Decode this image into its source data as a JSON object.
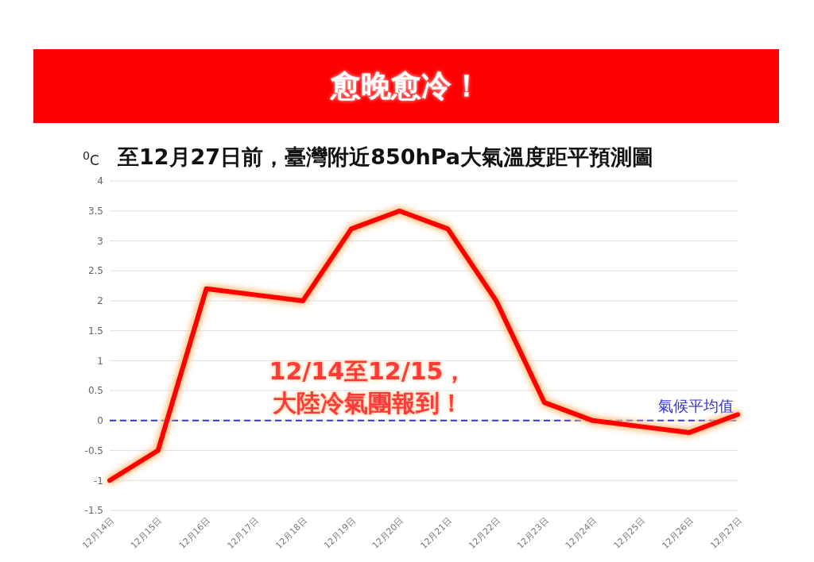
{
  "chart_data": {
    "type": "line",
    "title": "愈晚愈冷！",
    "subtitle": "至12月27日前，臺灣附近850hPa大氣溫度距平預測圖",
    "ylabel": "$^{0}$C",
    "categories": [
      "12月14日",
      "12月15日",
      "12月16日",
      "12月17日",
      "12月18日",
      "12月19日",
      "12月20日",
      "12月21日",
      "12月22日",
      "12月23日",
      "12月24日",
      "12月25日",
      "12月26日",
      "12月27日"
    ],
    "series": [
      {
        "color": "#ff0000",
        "values": [
          -1,
          -0.5,
          2.2,
          2.1,
          2.0,
          3.2,
          3.5,
          3.2,
          2.0,
          0.3,
          0,
          -0.1,
          -0.2,
          0.1
        ]
      }
    ],
    "ylim": [
      -1.5,
      4
    ],
    "yticks": [
      -1.5,
      -1,
      -0.5,
      0,
      0.5,
      1,
      1.5,
      2,
      2.5,
      3,
      3.5,
      4
    ],
    "grid": "y",
    "legend": false,
    "marker": "none",
    "line_style": "solid",
    "ref_lines": [
      {
        "axis": "y",
        "value": 0,
        "label": "氣候平均值",
        "color": "#3333dd",
        "line_style": "dashed"
      }
    ],
    "annotations": [
      "12/14至12/15，",
      "大陸冷氣團報到！"
    ]
  }
}
